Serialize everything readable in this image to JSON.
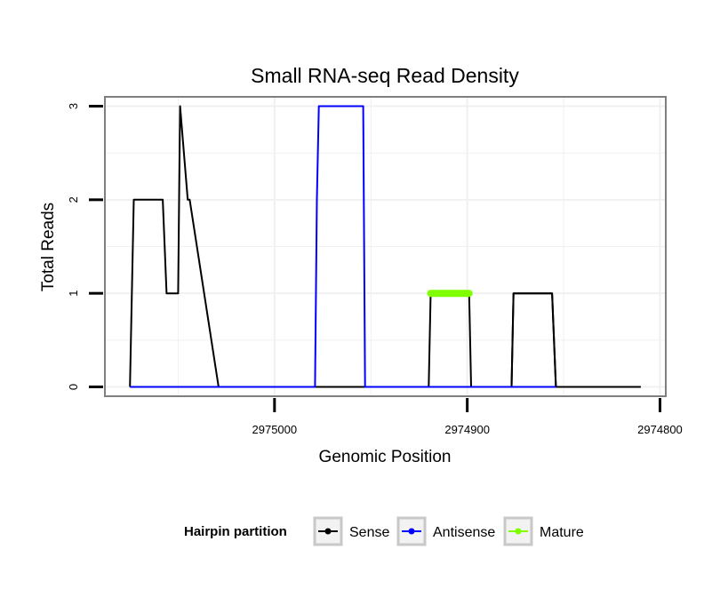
{
  "chart_data": {
    "type": "line",
    "title": "Small RNA-seq Read Density",
    "xlabel": "Genomic Position",
    "ylabel": "Total Reads",
    "x_reversed": true,
    "xlim": [
      2975088,
      2974797
    ],
    "ylim": [
      -0.1,
      3.1
    ],
    "x_ticks": [
      2975000,
      2974900,
      2974800
    ],
    "x_tick_labels": [
      "2975000",
      "2974900",
      "2974800"
    ],
    "y_ticks": [
      0,
      1,
      2,
      3
    ],
    "y_tick_labels": [
      "0",
      "1",
      "2",
      "3"
    ],
    "grid": true,
    "legend": {
      "title": "Hairpin partition",
      "position": "bottom",
      "entries": [
        "Sense",
        "Antisense",
        "Mature"
      ]
    },
    "series": [
      {
        "name": "Sense",
        "color": "#000000",
        "x": [
          2975075,
          2975073,
          2975058,
          2975056,
          2975050,
          2975049,
          2975045,
          2975044,
          2975029,
          2975027,
          2974877,
          2974876,
          2974856,
          2974854,
          2974833,
          2974831,
          2974810
        ],
        "y": [
          0,
          2,
          2,
          1,
          1,
          3,
          2,
          2,
          0,
          0,
          0,
          1,
          1,
          0,
          0,
          0,
          0
        ]
      },
      {
        "name": "Sense",
        "color": "#000000",
        "x": [
          2974920,
          2974919,
          2974899,
          2974898
        ],
        "y": [
          0,
          1,
          1,
          0
        ]
      },
      {
        "name": "Sense",
        "color": "#000000",
        "x": [
          2974877,
          2974876,
          2974856,
          2974854,
          2974810
        ],
        "y": [
          0,
          1,
          1,
          0,
          0
        ]
      },
      {
        "name": "Antisense",
        "color": "#0000ff",
        "x": [
          2975075,
          2974979,
          2974978,
          2974977,
          2974954,
          2974953,
          2974920,
          2974898,
          2974877,
          2974854
        ],
        "y": [
          0,
          0,
          2,
          3,
          3,
          0,
          0,
          0,
          0,
          0
        ]
      },
      {
        "name": "Mature",
        "color": "#7fff00",
        "x": [
          2974919,
          2974899
        ],
        "y": [
          1,
          1
        ]
      }
    ]
  }
}
